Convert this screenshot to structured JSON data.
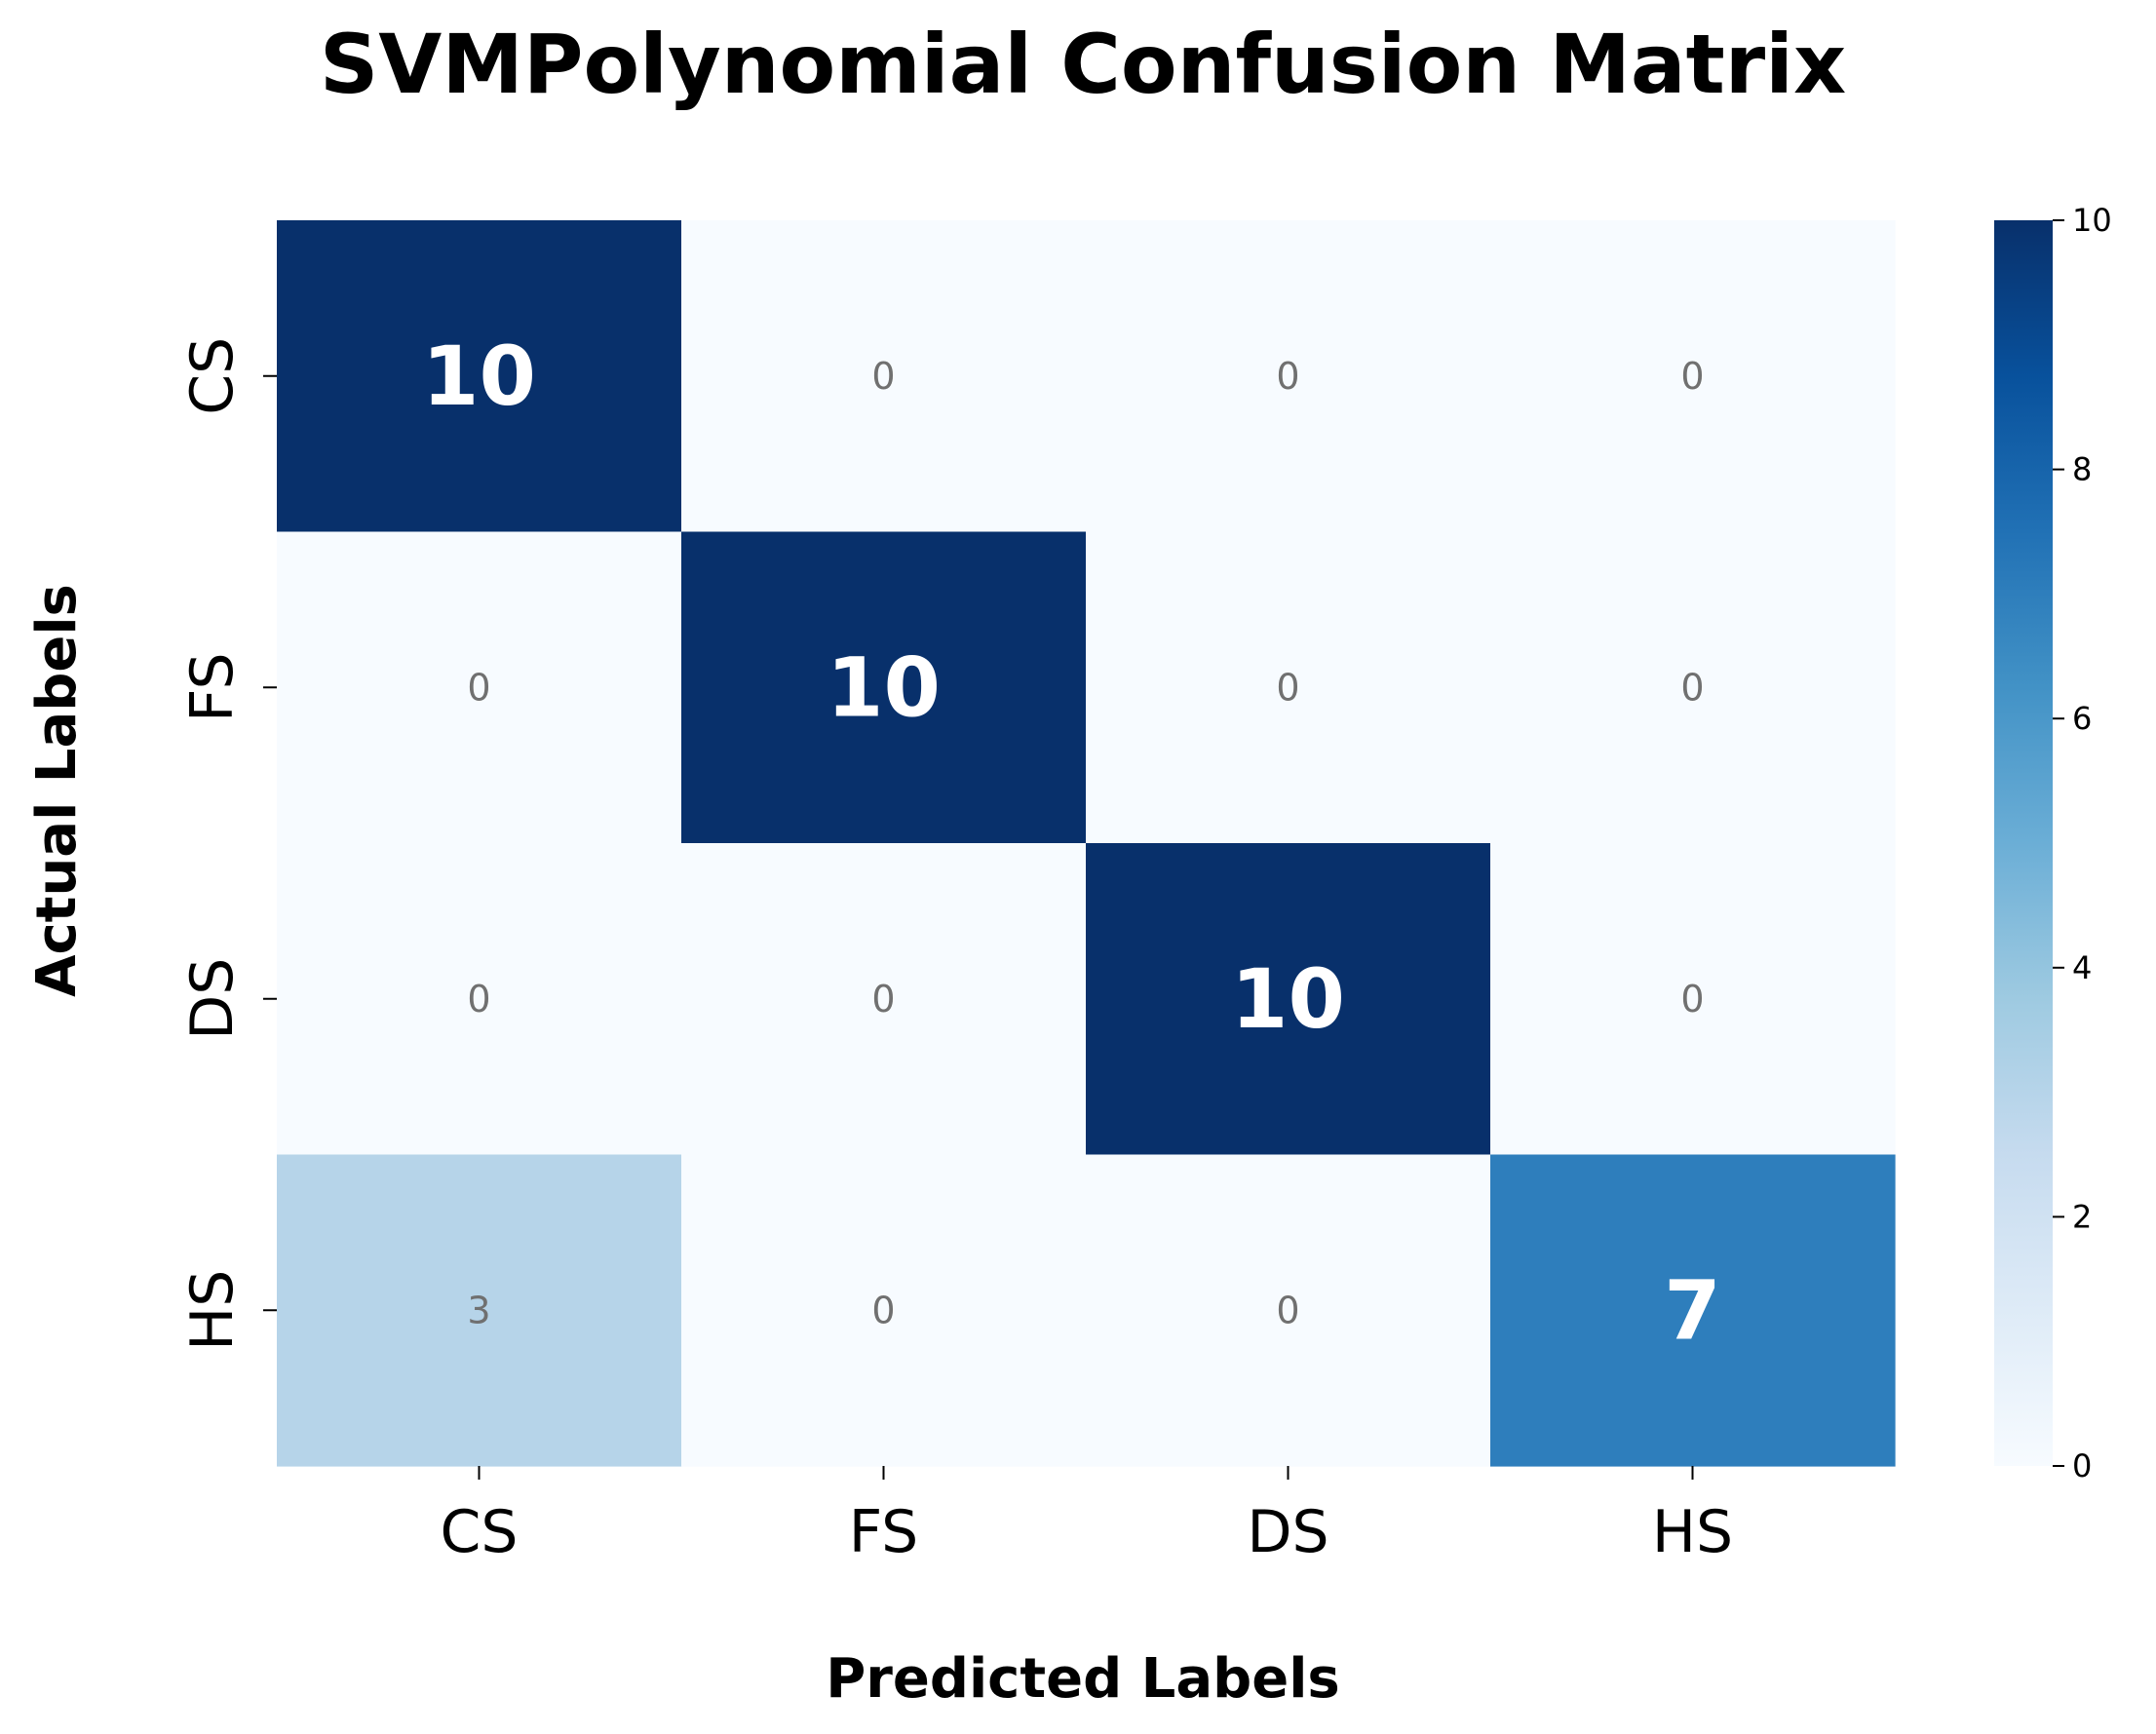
{
  "chart_data": {
    "type": "heatmap",
    "title": "SVMPolynomial Confusion Matrix",
    "xlabel": "Predicted Labels",
    "ylabel": "Actual Labels",
    "x_categories": [
      "CS",
      "FS",
      "DS",
      "HS"
    ],
    "y_categories": [
      "CS",
      "FS",
      "DS",
      "HS"
    ],
    "matrix": [
      [
        10,
        0,
        0,
        0
      ],
      [
        0,
        10,
        0,
        0
      ],
      [
        0,
        0,
        10,
        0
      ],
      [
        3,
        0,
        0,
        7
      ]
    ],
    "colormap": "Blues",
    "colorbar": {
      "vmin": 0,
      "vmax": 10,
      "ticks": [
        "0",
        "2",
        "4",
        "6",
        "8",
        "10"
      ]
    }
  }
}
